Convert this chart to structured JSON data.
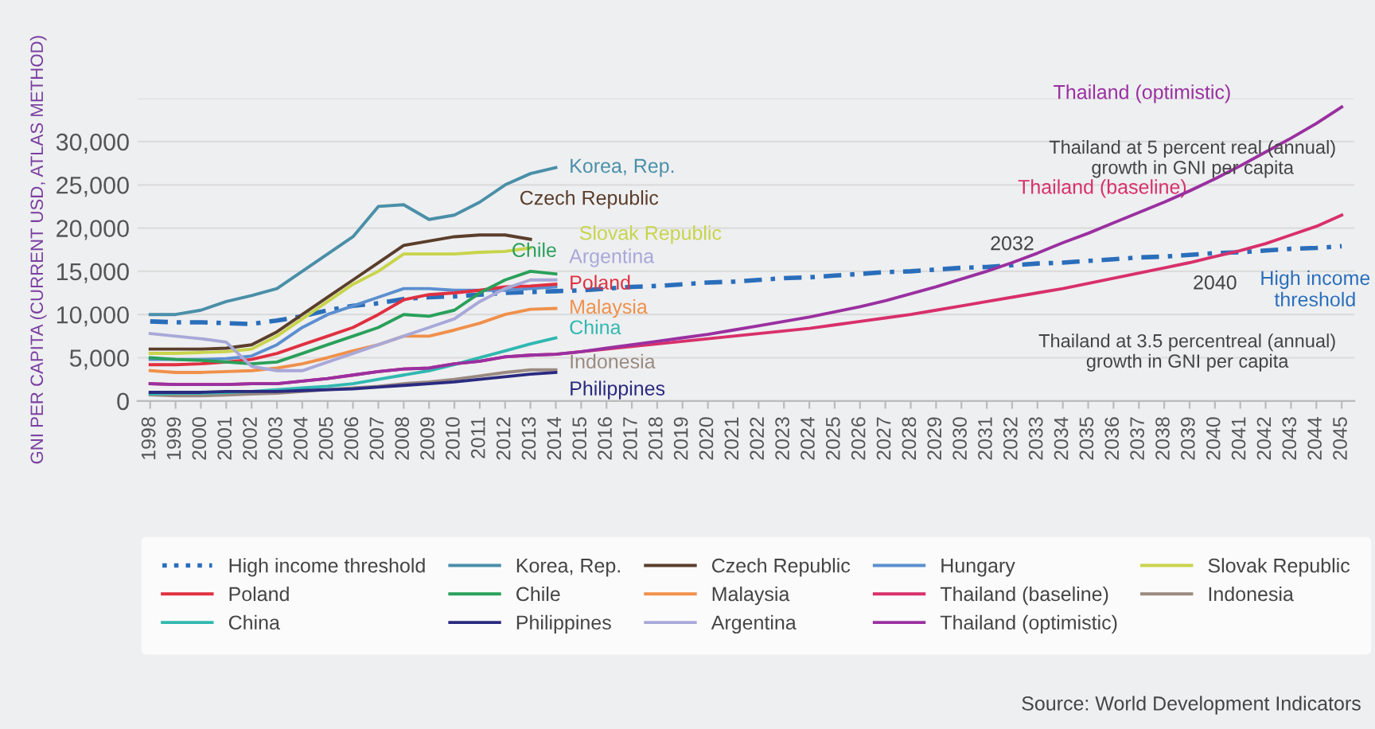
{
  "chart_data": {
    "type": "line",
    "ylabel": "GNI PER CAPITA (CURRENT USD, ATLAS METHOD)",
    "categories": [
      "1998",
      "1999",
      "2000",
      "2001",
      "2002",
      "2003",
      "2004",
      "2005",
      "2006",
      "2007",
      "2008",
      "2009",
      "2010",
      "2011",
      "2012",
      "2013",
      "2014",
      "2015",
      "2016",
      "2017",
      "2018",
      "2019",
      "2020",
      "2021",
      "2022",
      "2023",
      "2024",
      "2025",
      "2026",
      "2027",
      "2028",
      "2029",
      "2030",
      "2031",
      "2032",
      "2033",
      "2034",
      "2035",
      "2036",
      "2037",
      "2038",
      "2039",
      "2040",
      "2041",
      "2042",
      "2043",
      "2044",
      "2045"
    ],
    "ylim": [
      0,
      35000
    ],
    "yticks": [
      {
        "value": 0,
        "label": "0"
      },
      {
        "value": 5000,
        "label": "5,000"
      },
      {
        "value": 10000,
        "label": "10,000"
      },
      {
        "value": 15000,
        "label": "15,000"
      },
      {
        "value": 20000,
        "label": "20,000"
      },
      {
        "value": 25000,
        "label": "25,000"
      },
      {
        "value": 30000,
        "label": "30,000"
      },
      {
        "value": 35000,
        "label": null
      }
    ],
    "grid": "y",
    "legend": "bottom",
    "marker": "none",
    "line_style": "solid",
    "series": [
      {
        "name": "High income threshold",
        "color": "#2a6ebb",
        "line_style": "dashed",
        "values": [
          9200,
          9100,
          9100,
          9000,
          8900,
          9300,
          9800,
          10500,
          11000,
          11300,
          11800,
          12000,
          12100,
          12300,
          12500,
          12600,
          12700,
          12800,
          13000,
          13200,
          13300,
          13500,
          13700,
          13800,
          14000,
          14200,
          14300,
          14500,
          14700,
          14900,
          15000,
          15200,
          15400,
          15500,
          15700,
          15900,
          16000,
          16200,
          16400,
          16600,
          16700,
          16900,
          17100,
          17200,
          17400,
          17600,
          17700,
          17900
        ]
      },
      {
        "name": "Korea, Rep.",
        "color": "#4a8fa8",
        "values": [
          10000,
          10000,
          10500,
          11500,
          12200,
          13000,
          15000,
          17000,
          19000,
          22500,
          22700,
          21000,
          21500,
          23000,
          25000,
          26300,
          27000,
          null,
          null,
          null,
          null,
          null,
          null,
          null,
          null,
          null,
          null,
          null,
          null,
          null,
          null,
          null,
          null,
          null,
          null,
          null,
          null,
          null,
          null,
          null,
          null,
          null,
          null,
          null,
          null,
          null,
          null,
          null
        ]
      },
      {
        "name": "Czech Republic",
        "color": "#5a3e2b",
        "values": [
          6000,
          6000,
          6000,
          6100,
          6500,
          8000,
          10000,
          12000,
          14000,
          16000,
          18000,
          18500,
          19000,
          19200,
          19200,
          18700,
          null,
          null,
          null,
          null,
          null,
          null,
          null,
          null,
          null,
          null,
          null,
          null,
          null,
          null,
          null,
          null,
          null,
          null,
          null,
          null,
          null,
          null,
          null,
          null,
          null,
          null,
          null,
          null,
          null,
          null,
          null,
          null
        ]
      },
      {
        "name": "Hungary",
        "color": "#5b8fcf",
        "values": [
          4800,
          4800,
          4800,
          4900,
          5200,
          6500,
          8500,
          10000,
          11000,
          12000,
          13000,
          13000,
          12800,
          12800,
          12800,
          13000,
          13200,
          null,
          null,
          null,
          null,
          null,
          null,
          null,
          null,
          null,
          null,
          null,
          null,
          null,
          null,
          null,
          null,
          null,
          null,
          null,
          null,
          null,
          null,
          null,
          null,
          null,
          null,
          null,
          null,
          null,
          null,
          null
        ]
      },
      {
        "name": "Slovak Republic",
        "color": "#c8d44a",
        "values": [
          5500,
          5500,
          5600,
          5700,
          6000,
          7500,
          9500,
          11500,
          13500,
          15000,
          17000,
          17000,
          17000,
          17200,
          17300,
          17700,
          null,
          null,
          null,
          null,
          null,
          null,
          null,
          null,
          null,
          null,
          null,
          null,
          null,
          null,
          null,
          null,
          null,
          null,
          null,
          null,
          null,
          null,
          null,
          null,
          null,
          null,
          null,
          null,
          null,
          null,
          null,
          null
        ]
      },
      {
        "name": "Poland",
        "color": "#e03040",
        "values": [
          4200,
          4200,
          4300,
          4500,
          4800,
          5500,
          6500,
          7500,
          8500,
          10000,
          11700,
          12300,
          12500,
          12800,
          13200,
          13300,
          13500,
          null,
          null,
          null,
          null,
          null,
          null,
          null,
          null,
          null,
          null,
          null,
          null,
          null,
          null,
          null,
          null,
          null,
          null,
          null,
          null,
          null,
          null,
          null,
          null,
          null,
          null,
          null,
          null,
          null,
          null,
          null
        ]
      },
      {
        "name": "Chile",
        "color": "#2aa05a",
        "values": [
          5000,
          4800,
          4700,
          4500,
          4300,
          4500,
          5500,
          6500,
          7500,
          8500,
          10000,
          9800,
          10500,
          12500,
          14000,
          15000,
          14700,
          null,
          null,
          null,
          null,
          null,
          null,
          null,
          null,
          null,
          null,
          null,
          null,
          null,
          null,
          null,
          null,
          null,
          null,
          null,
          null,
          null,
          null,
          null,
          null,
          null,
          null,
          null,
          null,
          null,
          null,
          null
        ]
      },
      {
        "name": "Malaysia",
        "color": "#f0904a",
        "values": [
          3500,
          3300,
          3300,
          3400,
          3500,
          3800,
          4300,
          5000,
          5800,
          6500,
          7500,
          7500,
          8200,
          9000,
          10000,
          10600,
          10700,
          null,
          null,
          null,
          null,
          null,
          null,
          null,
          null,
          null,
          null,
          null,
          null,
          null,
          null,
          null,
          null,
          null,
          null,
          null,
          null,
          null,
          null,
          null,
          null,
          null,
          null,
          null,
          null,
          null,
          null,
          null
        ]
      },
      {
        "name": "Thailand (baseline)",
        "color": "#d8306a",
        "values": [
          2000,
          1900,
          1900,
          1900,
          2000,
          2000,
          2300,
          2600,
          3000,
          3400,
          3700,
          3800,
          4300,
          4600,
          5100,
          5300,
          5400,
          5700,
          6000,
          6300,
          6600,
          6900,
          7200,
          7500,
          7800,
          8100,
          8400,
          8800,
          9200,
          9600,
          10000,
          10500,
          11000,
          11500,
          12000,
          12500,
          13000,
          13600,
          14200,
          14800,
          15400,
          16000,
          16700,
          17400,
          18200,
          19200,
          20200,
          21500
        ]
      },
      {
        "name": "Indonesia",
        "color": "#9a8a80",
        "values": [
          700,
          600,
          600,
          700,
          800,
          900,
          1100,
          1300,
          1500,
          1700,
          2000,
          2200,
          2500,
          2900,
          3300,
          3600,
          3600,
          null,
          null,
          null,
          null,
          null,
          null,
          null,
          null,
          null,
          null,
          null,
          null,
          null,
          null,
          null,
          null,
          null,
          null,
          null,
          null,
          null,
          null,
          null,
          null,
          null,
          null,
          null,
          null,
          null,
          null,
          null
        ]
      },
      {
        "name": "China",
        "color": "#30b8b0",
        "values": [
          800,
          900,
          900,
          1000,
          1100,
          1300,
          1500,
          1700,
          2000,
          2500,
          3000,
          3500,
          4200,
          5000,
          5800,
          6600,
          7300,
          null,
          null,
          null,
          null,
          null,
          null,
          null,
          null,
          null,
          null,
          null,
          null,
          null,
          null,
          null,
          null,
          null,
          null,
          null,
          null,
          null,
          null,
          null,
          null,
          null,
          null,
          null,
          null,
          null,
          null,
          null
        ]
      },
      {
        "name": "Philippines",
        "color": "#2a2a80",
        "values": [
          1000,
          1000,
          1000,
          1100,
          1100,
          1100,
          1200,
          1300,
          1400,
          1600,
          1800,
          2000,
          2200,
          2500,
          2800,
          3100,
          3300,
          null,
          null,
          null,
          null,
          null,
          null,
          null,
          null,
          null,
          null,
          null,
          null,
          null,
          null,
          null,
          null,
          null,
          null,
          null,
          null,
          null,
          null,
          null,
          null,
          null,
          null,
          null,
          null,
          null,
          null,
          null
        ]
      },
      {
        "name": "Argentina",
        "color": "#a8a8d8",
        "values": [
          7800,
          7500,
          7200,
          6800,
          4000,
          3500,
          3500,
          4500,
          5500,
          6500,
          7500,
          8500,
          9500,
          11500,
          13000,
          14000,
          14000,
          null,
          null,
          null,
          null,
          null,
          null,
          null,
          null,
          null,
          null,
          null,
          null,
          null,
          null,
          null,
          null,
          null,
          null,
          null,
          null,
          null,
          null,
          null,
          null,
          null,
          null,
          null,
          null,
          null,
          null,
          null
        ]
      },
      {
        "name": "Thailand (optimistic)",
        "color": "#9a30a0",
        "values": [
          2000,
          1900,
          1900,
          1900,
          2000,
          2000,
          2300,
          2600,
          3000,
          3400,
          3700,
          3800,
          4300,
          4600,
          5100,
          5300,
          5400,
          5700,
          6100,
          6500,
          6900,
          7300,
          7700,
          8200,
          8700,
          9200,
          9700,
          10300,
          10900,
          11600,
          12400,
          13200,
          14100,
          15000,
          16000,
          17100,
          18300,
          19400,
          20600,
          21800,
          23000,
          24300,
          25700,
          27200,
          28800,
          30400,
          32100,
          34000
        ]
      }
    ],
    "annotations": [
      {
        "text": "2032",
        "x": "2032",
        "y": 15500
      },
      {
        "text": "2040",
        "x": "2040",
        "y": 17100
      },
      "Thailand at 5 percent real (annual)\ngrowth in GNI per capita",
      "Thailand at 3.5 percentreal (annual)\ngrowth in GNI per capita",
      "Source: World Development Indicators"
    ]
  }
}
